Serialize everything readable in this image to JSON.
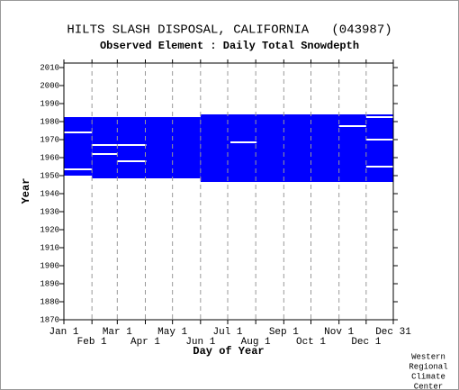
{
  "chart_data": {
    "type": "coverage",
    "title": "HILTS SLASH DISPOSAL, CALIFORNIA   (043987)",
    "subtitle": "Observed Element : Daily Total Snowdepth",
    "x_label": "Day of Year",
    "y_label": "Year",
    "credit": [
      "Western",
      "Regional",
      "Climate",
      "Center"
    ],
    "xlim": [
      1,
      365
    ],
    "xticks": [
      {
        "value": 1,
        "label": "Jan 1"
      },
      {
        "value": 32,
        "label": "Feb 1"
      },
      {
        "value": 60,
        "label": "Mar 1"
      },
      {
        "value": 91,
        "label": "Apr 1"
      },
      {
        "value": 121,
        "label": "May 1"
      },
      {
        "value": 152,
        "label": "Jun 1"
      },
      {
        "value": 182,
        "label": "Jul 1"
      },
      {
        "value": 213,
        "label": "Aug 1"
      },
      {
        "value": 244,
        "label": "Sep 1"
      },
      {
        "value": 274,
        "label": "Oct 1"
      },
      {
        "value": 305,
        "label": "Nov 1"
      },
      {
        "value": 335,
        "label": "Dec 1"
      },
      {
        "value": 365,
        "label": "Dec 31"
      }
    ],
    "ylim": [
      1870,
      2012.5
    ],
    "yticks": [
      1870,
      1880,
      1890,
      1900,
      1910,
      1920,
      1930,
      1940,
      1950,
      1960,
      1970,
      1980,
      1990,
      2000,
      2010
    ],
    "grid": "x",
    "color": "#0000ff",
    "blocks": [
      {
        "x": [
          1,
          32
        ],
        "y": [
          1950,
          1982.5
        ]
      },
      {
        "x": [
          32,
          152
        ],
        "y": [
          1948.5,
          1982.5
        ]
      },
      {
        "x": [
          152,
          365
        ],
        "y": [
          1946.5,
          1984
        ]
      }
    ],
    "gap_color": "#ffffff",
    "gaps": [
      {
        "x": [
          1,
          32
        ],
        "year": 1974
      },
      {
        "x": [
          1,
          32
        ],
        "year": 1953.5
      },
      {
        "x": [
          32,
          92
        ],
        "year": 1967
      },
      {
        "x": [
          32,
          60
        ],
        "year": 1962
      },
      {
        "x": [
          60,
          92
        ],
        "year": 1958
      },
      {
        "x": [
          185,
          214
        ],
        "year": 1968.5
      },
      {
        "x": [
          305,
          335
        ],
        "year": 1977.5
      },
      {
        "x": [
          335,
          365
        ],
        "year": 1982.5
      },
      {
        "x": [
          335,
          365
        ],
        "year": 1970
      },
      {
        "x": [
          335,
          365
        ],
        "year": 1955
      }
    ]
  }
}
